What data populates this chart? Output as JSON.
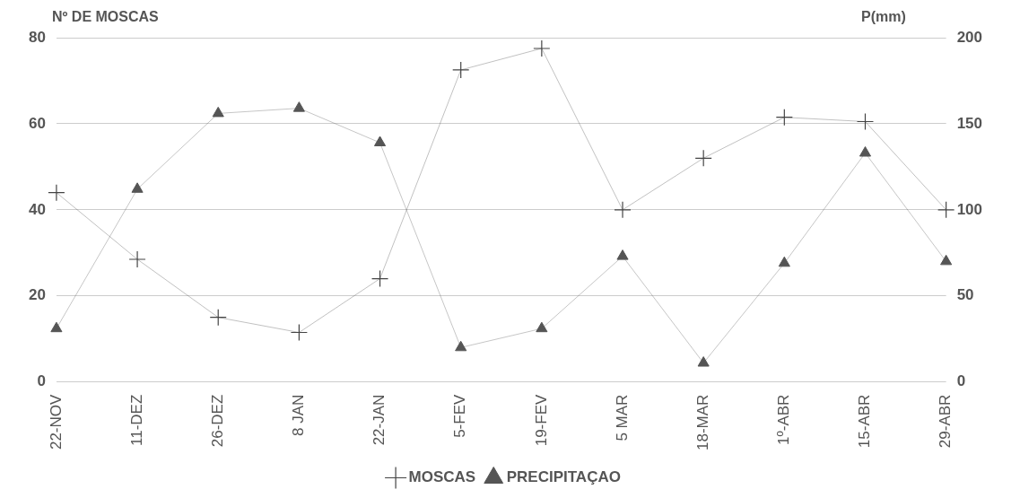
{
  "chart_data": {
    "type": "line",
    "ylabel": "Nº DE MOSCAS",
    "y2label": "P(mm)",
    "categories": [
      "22-NOV",
      "11-DEZ",
      "26-DEZ",
      "8 JAN",
      "22-JAN",
      "5-FEV",
      "19-FEV",
      "5 MAR",
      "18-MAR",
      "1º-ABR",
      "15-ABR",
      "29-ABR"
    ],
    "series": [
      {
        "name": "MOSCAS",
        "color": "#444444",
        "marker": "cross",
        "values": [
          44,
          28.5,
          15,
          11.5,
          24,
          72.5,
          77.5,
          40,
          52,
          61.5,
          60.5,
          40
        ]
      },
      {
        "name": "PRECIPITAÇAO",
        "color": "#555555",
        "marker": "triangle",
        "axis": "y2",
        "values": [
          31,
          112,
          156,
          159,
          139,
          20,
          31,
          73,
          11,
          69,
          133,
          70
        ]
      }
    ],
    "ylim": [
      0,
      80
    ],
    "yticks": [
      0,
      20,
      40,
      60,
      80
    ],
    "y2lim": [
      0,
      200
    ],
    "y2ticks": [
      0,
      50,
      100,
      150,
      200
    ],
    "grid": "y",
    "legend": "bottom",
    "line_style": "solid"
  }
}
